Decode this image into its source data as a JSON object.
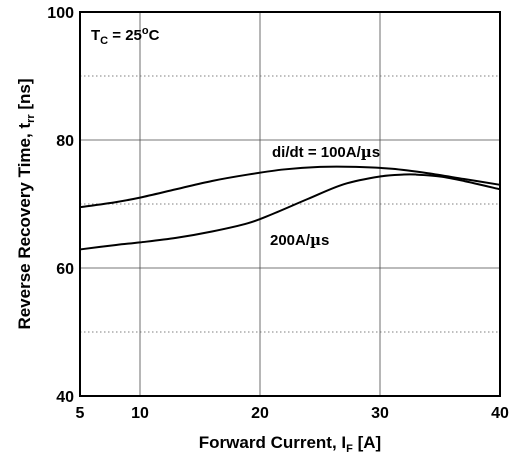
{
  "chart_data": {
    "type": "line",
    "xlabel": {
      "main": "Forward Current, I",
      "sub": "F",
      "tail": " [A]"
    },
    "ylabel": {
      "main": "Reverse Recovery Time, t",
      "sub": "rr",
      "tail": " [ns]"
    },
    "condition": {
      "main": "T",
      "sub": "C",
      "mid": " = 25",
      "sup": "o",
      "tail": "C"
    },
    "xlim": [
      5,
      40
    ],
    "ylim": [
      40,
      100
    ],
    "x_ticks": [
      5,
      10,
      20,
      30,
      40
    ],
    "x_tick_labels": [
      "5",
      "10",
      "20",
      "30",
      "40"
    ],
    "y_ticks": [
      40,
      60,
      80,
      100
    ],
    "y_tick_labels": [
      "40",
      "60",
      "80",
      "100"
    ],
    "y_minor_gridlines": [
      50,
      70,
      90
    ],
    "grid": true,
    "series": [
      {
        "name": "di/dt = 100A/µs",
        "label_parts": {
          "pre": "di/dt = 100A/",
          "mu": "µ",
          "post": "s"
        },
        "x": [
          5,
          8,
          10,
          13,
          16,
          19,
          22,
          25,
          28,
          31,
          34,
          37,
          40
        ],
        "y": [
          69.5,
          70.3,
          71.0,
          72.3,
          73.6,
          74.6,
          75.4,
          75.8,
          75.8,
          75.5,
          74.8,
          73.9,
          73.0
        ]
      },
      {
        "name": "200A/µs",
        "label_parts": {
          "pre": "200A/",
          "mu": "µ",
          "post": "s"
        },
        "x": [
          5,
          8,
          10,
          13,
          16,
          19,
          21,
          24,
          27,
          30,
          32,
          33,
          35,
          37,
          40
        ],
        "y": [
          62.9,
          63.6,
          64.0,
          64.7,
          65.7,
          67.0,
          68.4,
          70.8,
          73.1,
          74.3,
          74.6,
          74.6,
          74.3,
          73.6,
          72.3
        ]
      }
    ]
  }
}
